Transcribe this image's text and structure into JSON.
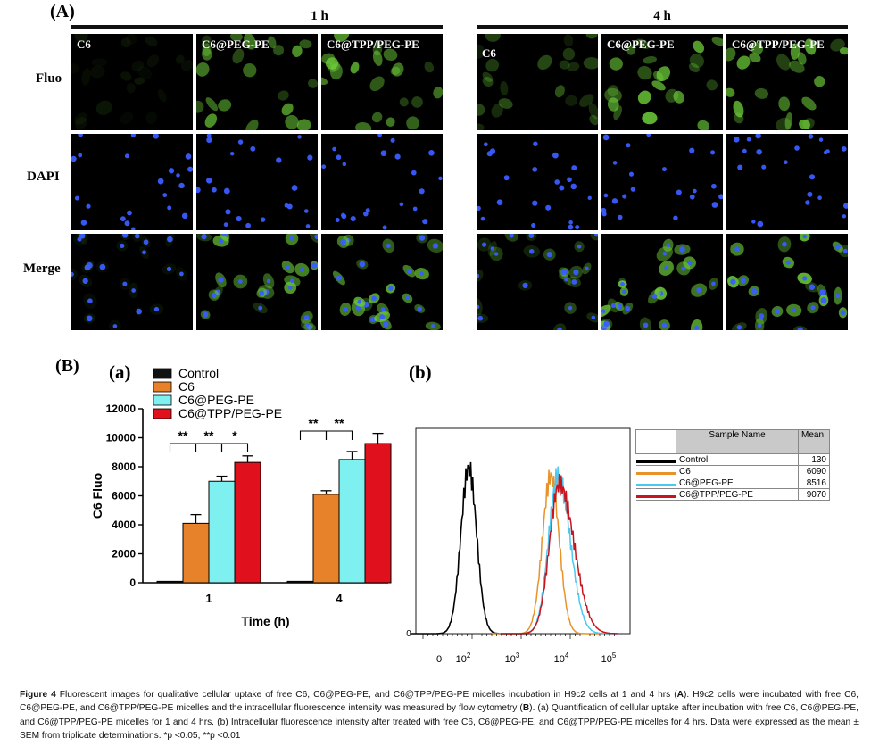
{
  "panelA": {
    "letter": "(A)",
    "groups": [
      {
        "time": "1 h",
        "columns": [
          "C6",
          "C6@PEG-PE",
          "C6@TPP/PEG-PE"
        ]
      },
      {
        "time": "4 h",
        "columns": [
          "C6",
          "C6@PEG-PE",
          "C6@TPP/PEG-PE"
        ]
      }
    ],
    "rows": [
      "Fluo",
      "DAPI",
      "Merge"
    ],
    "colors": {
      "fluo": "#6fd23a",
      "dapi": "#3a5cff",
      "background": "#000000"
    }
  },
  "panelB": {
    "letter": "(B)",
    "a_letter": "(a)",
    "b_letter": "(b)"
  },
  "chart_data": [
    {
      "type": "bar",
      "categories": [
        "1",
        "4"
      ],
      "series": [
        {
          "name": "Control",
          "color": "#111111",
          "values": [
            100,
            100
          ],
          "errors": [
            0,
            0
          ]
        },
        {
          "name": "C6",
          "color": "#e8822a",
          "values": [
            4100,
            6100
          ],
          "errors": [
            600,
            250
          ]
        },
        {
          "name": "C6@PEG-PE",
          "color": "#7ff0f0",
          "values": [
            7000,
            8500
          ],
          "errors": [
            350,
            550
          ]
        },
        {
          "name": "C6@TPP/PEG-PE",
          "color": "#e0101c",
          "values": [
            8300,
            9600
          ],
          "errors": [
            450,
            700
          ]
        }
      ],
      "xlabel": "Time (h)",
      "ylabel": "C6 Fluo",
      "ylim": [
        0,
        12000
      ],
      "yticks": [
        "0",
        "2000",
        "4000",
        "6000",
        "8000",
        "10000",
        "12000"
      ],
      "significance": [
        {
          "category": "1",
          "from": 0,
          "to": 1,
          "label": "**"
        },
        {
          "category": "1",
          "from": 1,
          "to": 2,
          "label": "**"
        },
        {
          "category": "1",
          "from": 2,
          "to": 3,
          "label": "*"
        },
        {
          "category": "4",
          "from": 0,
          "to": 1,
          "label": "**"
        },
        {
          "category": "4",
          "from": 1,
          "to": 2,
          "label": "**"
        }
      ],
      "legend": "top-left"
    },
    {
      "type": "line",
      "x_scale": "log",
      "xticks": [
        "0",
        "10^2",
        "10^3",
        "10^4",
        "10^5"
      ],
      "yticks": [
        "0"
      ],
      "series": [
        {
          "name": "Control",
          "color": "#000000",
          "peak_x": 130
        },
        {
          "name": "C6",
          "color": "#e8922a",
          "peak_x": 6090
        },
        {
          "name": "C6@PEG-PE",
          "color": "#4cc8ee",
          "peak_x": 8516
        },
        {
          "name": "C6@TPP/PEG-PE",
          "color": "#c8141e",
          "peak_x": 9070
        }
      ],
      "table": {
        "headers": [
          "Sample Name",
          "Mean"
        ],
        "rows": [
          {
            "name": "Control",
            "mean": "130",
            "color": "#000000"
          },
          {
            "name": "C6",
            "mean": "6090",
            "color": "#e8922a"
          },
          {
            "name": "C6@PEG-PE",
            "mean": "8516",
            "color": "#4cc8ee"
          },
          {
            "name": "C6@TPP/PEG-PE",
            "mean": "9070",
            "color": "#c8141e"
          }
        ]
      }
    }
  ],
  "caption": {
    "figure_label": "Figure 4",
    "text1": " Fluorescent images for qualitative cellular uptake of free C6, C6@PEG-PE, and C6@TPP/PEG-PE micelles incubation in H9c2 cells at 1 and 4 hrs (",
    "boldA": "A",
    "text2": "). H9c2 cells were incubated with free C6, C6@PEG-PE, and C6@TPP/PEG-PE micelles and the intracellular fluorescence intensity was measured by flow cytometry (",
    "boldB": "B",
    "text3": "). (a) Quantification of cellular uptake after incubation with free C6, C6@PEG-PE, and C6@TPP/PEG-PE micelles for 1 and 4 hrs. (b) Intracellular fluorescence intensity after treated with free C6, C6@PEG-PE, and C6@TPP/PEG-PE micelles for 4 hrs. Data were expressed as the mean ± SEM from triplicate determinations. *p <0.05, **p <0.01"
  }
}
